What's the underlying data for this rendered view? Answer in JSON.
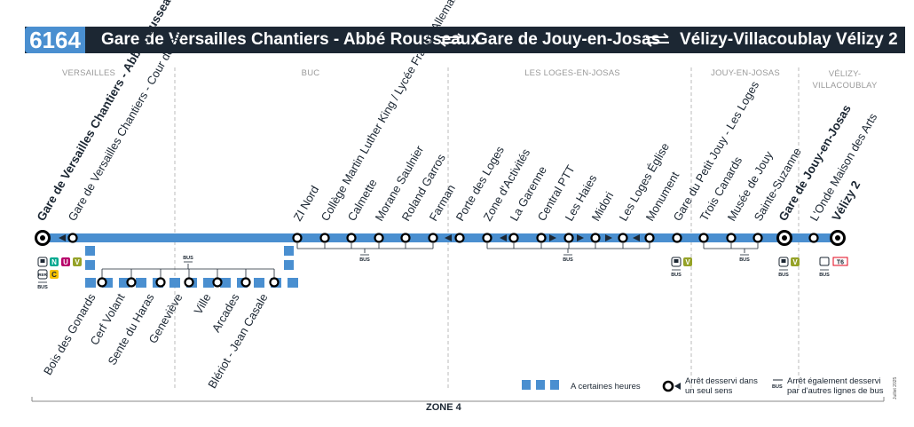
{
  "route": {
    "number": "6164",
    "stops_header": [
      "Gare de Versailles Chantiers - Abbé Rousseaux",
      "Gare de Jouy-en-Josas",
      "Vélizy-Villacoublay Vélizy 2"
    ]
  },
  "communes": [
    {
      "name": "VERSAILLES"
    },
    {
      "name": "BUC"
    },
    {
      "name": "LES LOGES-EN-JOSAS"
    },
    {
      "name": "JOUY-EN-JOSAS"
    },
    {
      "name": "VÉLIZY-VILLACOUBLAY"
    }
  ],
  "stops_top": [
    {
      "name": "Gare de Versailles Chantiers - Abbé Rousseaux",
      "terminus": true
    },
    {
      "name": "Gare de Versailles Chantiers - Cour de Buc"
    },
    {
      "name": "ZI Nord"
    },
    {
      "name": "Collège Martin Luther King / Lycée Franco-Allemand"
    },
    {
      "name": "Calmette"
    },
    {
      "name": "Morane Saulnier"
    },
    {
      "name": "Roland Garros"
    },
    {
      "name": "Farman"
    },
    {
      "name": "Porte des Loges"
    },
    {
      "name": "Zone d'Activités"
    },
    {
      "name": "La Garenne"
    },
    {
      "name": "Central PTT"
    },
    {
      "name": "Les Haies"
    },
    {
      "name": "Midori"
    },
    {
      "name": "Les Loges Église"
    },
    {
      "name": "Monument"
    },
    {
      "name": "Gare du Petit Jouy - Les Loges"
    },
    {
      "name": "Trois Canards"
    },
    {
      "name": "Musée de Jouy"
    },
    {
      "name": "Sainte-Suzanne"
    },
    {
      "name": "Gare de Jouy-en-Josas",
      "terminus": true
    },
    {
      "name": "L'Onde Maison des Arts"
    },
    {
      "name": "Vélizy 2",
      "terminus": true
    }
  ],
  "stops_bottom": [
    {
      "name": "Bois des Gonards"
    },
    {
      "name": "Cerf Volant"
    },
    {
      "name": "Sente du Haras"
    },
    {
      "name": "Geneviève"
    },
    {
      "name": "Ville"
    },
    {
      "name": "Arcades"
    },
    {
      "name": "Blériot - Jean Casale"
    }
  ],
  "correspondences": {
    "bus": "BUS",
    "rer": "RER",
    "lines": [
      "N",
      "U",
      "V",
      "C",
      "V",
      "V",
      "T6"
    ]
  },
  "legend": {
    "dashed": "A certaines heures",
    "one_way": "Arrêt desservi dans un seul sens",
    "other_lines": "Arrêt également desservi par d'autres lignes de bus"
  },
  "zone": "ZONE 4",
  "edition": "Juillet 2025",
  "colors": {
    "navy": "#1c2733",
    "line_blue": "#4a8fd0",
    "transilien_n": "#00a88f",
    "transilien_u": "#b7006a",
    "transilien_v": "#95a227",
    "rer_c": "#f5c200",
    "tram": "#e3051b"
  }
}
